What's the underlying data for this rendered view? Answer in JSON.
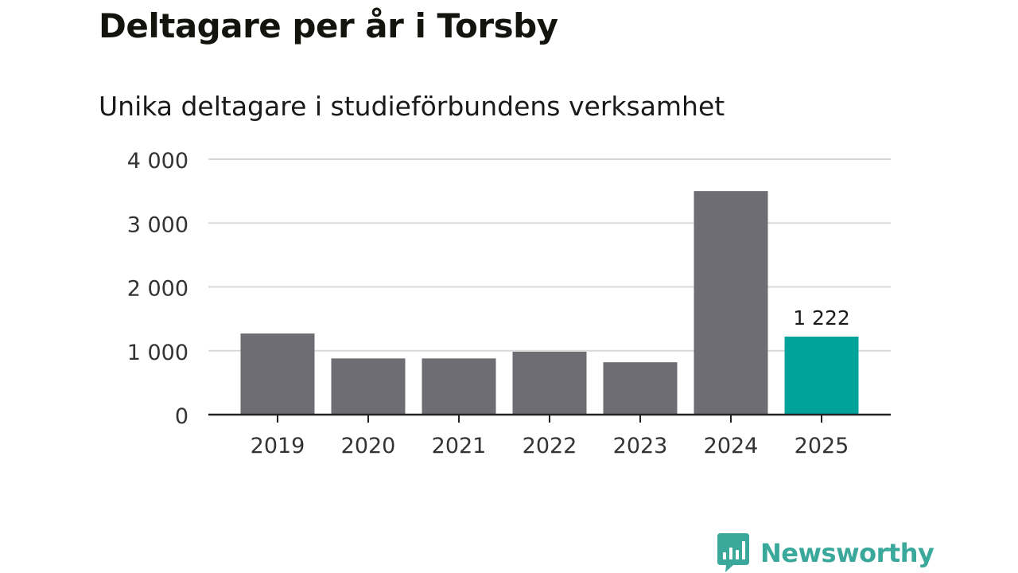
{
  "header": {
    "title": "Deltagare per år i Torsby",
    "subtitle": "Unika deltagare i studieförbundens verksamhet"
  },
  "chart_data": {
    "type": "bar",
    "title": "Deltagare per år i Torsby",
    "subtitle": "Unika deltagare i studieförbundens verksamhet",
    "categories": [
      "2019",
      "2020",
      "2021",
      "2022",
      "2023",
      "2024",
      "2025"
    ],
    "values": [
      1270,
      880,
      880,
      985,
      820,
      3500,
      1222
    ],
    "ylim": [
      0,
      4000
    ],
    "yticks": [
      0,
      1000,
      2000,
      3000,
      4000
    ],
    "ytick_labels": [
      "0",
      "1 000",
      "2 000",
      "3 000",
      "4 000"
    ],
    "xlabel": "",
    "ylabel": "",
    "grid": true,
    "highlight_index": 6,
    "highlight_label": "1 222",
    "colors": {
      "bar": "#6e6d73",
      "highlight": "#00a39a",
      "grid": "#d9d9d9",
      "axis": "#222222"
    }
  },
  "branding": {
    "logo_text": "Newsworthy",
    "logo_icon": "bar-chart-speech-bubble-icon",
    "color": "#3aa89a"
  }
}
